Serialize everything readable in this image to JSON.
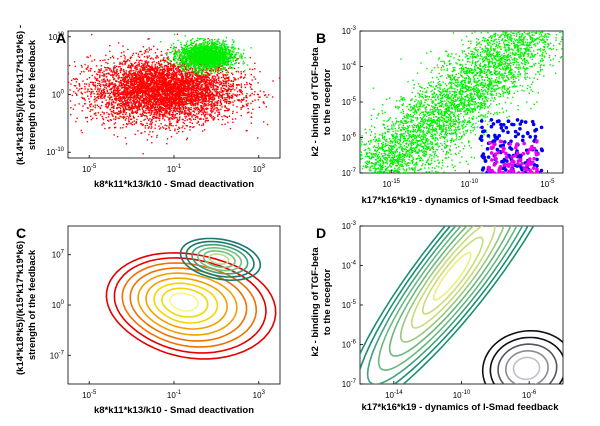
{
  "chart_data": [
    {
      "panel": "A",
      "type": "scatter",
      "xlabel": "k8*k11*k13/k10 - Smad deactivation",
      "ylabel": [
        "(k14*k18*k5)/(k15*k17*k19*k6) -",
        "strength of the feedback"
      ],
      "x_scale": "log",
      "y_scale": "log",
      "xlim": [
        1e-06,
        10000.0
      ],
      "ylim": [
        1e-11,
        100000000000.0
      ],
      "x_ticks": [
        {
          "base": "10",
          "exp": "-5",
          "value": 1e-05
        },
        {
          "base": "10",
          "exp": "-1",
          "value": 0.1
        },
        {
          "base": "10",
          "exp": "3",
          "value": 1000
        }
      ],
      "y_ticks": [
        {
          "base": "10",
          "exp": "10",
          "value": 10000000000.0
        },
        {
          "base": "10",
          "exp": "0",
          "value": 1
        },
        {
          "base": "10",
          "exp": "-10",
          "value": 1e-10
        }
      ],
      "series": [
        {
          "color": "#ff0000",
          "center_log": [
            -1.5,
            0.8
          ],
          "spread_log": [
            2.3,
            3.4
          ]
        },
        {
          "color": "#00ee00",
          "center_log": [
            0.5,
            6.8
          ],
          "spread_log": [
            0.85,
            1.3
          ]
        }
      ]
    },
    {
      "panel": "B",
      "type": "scatter",
      "xlabel": "k17*k16*k19 - dynamics of I-Smad feedback",
      "ylabel": [
        "k2 - binding of TGF-beta",
        "to the receptor"
      ],
      "x_scale": "log",
      "y_scale": "log",
      "xlim": [
        1e-17,
        0.0001
      ],
      "ylim": [
        1e-07,
        0.001
      ],
      "x_ticks": [
        {
          "base": "10",
          "exp": "-15",
          "value": 1e-15
        },
        {
          "base": "10",
          "exp": "-10",
          "value": 1e-10
        },
        {
          "base": "10",
          "exp": "-5",
          "value": 1e-05
        }
      ],
      "y_ticks": [
        {
          "base": "10",
          "exp": "-3",
          "value": 0.001
        },
        {
          "base": "10",
          "exp": "-4",
          "value": 0.0001
        },
        {
          "base": "10",
          "exp": "-5",
          "value": 1e-05
        },
        {
          "base": "10",
          "exp": "-6",
          "value": 1e-06
        },
        {
          "base": "10",
          "exp": "-7",
          "value": 1e-07
        }
      ],
      "series": [
        {
          "color": "#00ee00",
          "trend": "diagonal band from (1e-16, 1e-7) to (1e-6, 1e-3)"
        },
        {
          "color": "#0000ee",
          "region_log": {
            "x": [
              -9.3,
              -5.3
            ],
            "y": [
              -7.0,
              -5.5
            ]
          }
        },
        {
          "color": "#ee00ee",
          "region_log": {
            "x": [
              -8.8,
              -5.6
            ],
            "y": [
              -7.0,
              -6.1
            ]
          }
        }
      ]
    },
    {
      "panel": "C",
      "type": "contour",
      "xlabel": "k8*k11*k13/k10 - Smad deactivation",
      "ylabel": [
        "(k14*k18*k5)/(k15*k17*k19*k6) -",
        "strength of the feedback"
      ],
      "x_scale": "log",
      "y_scale": "log",
      "xlim": [
        1e-06,
        10000.0
      ],
      "ylim": [
        1e-11,
        100000000000.0
      ],
      "x_ticks": [
        {
          "base": "10",
          "exp": "-5",
          "value": 1e-05
        },
        {
          "base": "10",
          "exp": "-1",
          "value": 0.1
        },
        {
          "base": "10",
          "exp": "3",
          "value": 1000
        }
      ],
      "y_ticks": [
        {
          "base": "10",
          "exp": "7",
          "value": 10000000.0
        },
        {
          "base": "10",
          "exp": "0",
          "value": 1
        },
        {
          "base": "10",
          "exp": "-7",
          "value": 1e-07
        }
      ],
      "levels": 9,
      "color_scales": [
        [
          "#e60000",
          "#f07000",
          "#f2a000",
          "#f5d600",
          "#f9f58c"
        ],
        [
          "#1b7a6b",
          "#3fa07a",
          "#73bf7e",
          "#b9dd8e"
        ]
      ]
    },
    {
      "panel": "D",
      "type": "contour",
      "xlabel": "k17*k16*k19 - dynamics of I-Smad feedback",
      "ylabel": [
        "k2 - binding of TGF-beta",
        "to the receptor"
      ],
      "x_scale": "log",
      "y_scale": "log",
      "xlim": [
        1e-16,
        0.0001
      ],
      "ylim": [
        1e-07,
        0.001
      ],
      "x_ticks": [
        {
          "base": "10",
          "exp": "-14",
          "value": 1e-14
        },
        {
          "base": "10",
          "exp": "-10",
          "value": 1e-10
        },
        {
          "base": "10",
          "exp": "-6",
          "value": 1e-06
        }
      ],
      "y_ticks": [
        {
          "base": "10",
          "exp": "-3",
          "value": 0.001
        },
        {
          "base": "10",
          "exp": "-4",
          "value": 0.0001
        },
        {
          "base": "10",
          "exp": "-5",
          "value": 1e-05
        },
        {
          "base": "10",
          "exp": "-6",
          "value": 1e-06
        },
        {
          "base": "10",
          "exp": "-7",
          "value": 1e-07
        }
      ],
      "levels": 8,
      "color_scales": [
        [
          "#1a8f73",
          "#3ea37a",
          "#6ab77f",
          "#98c97c",
          "#c6dd78",
          "#ecef7a"
        ],
        [
          "#111111",
          "#555560",
          "#8a8a95",
          "#c0c0cc"
        ]
      ]
    }
  ]
}
